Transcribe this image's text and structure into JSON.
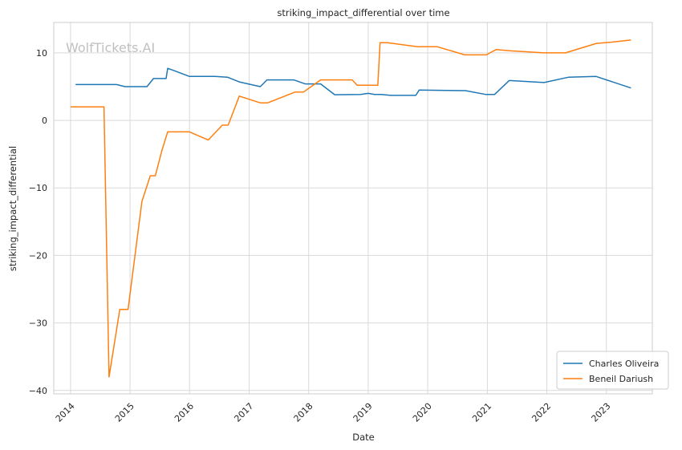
{
  "chart_data": {
    "type": "line",
    "title": "striking_impact_differential over time",
    "xlabel": "Date",
    "ylabel": "striking_impact_differential",
    "watermark": "WolfTickets.AI",
    "xlim": [
      "2013-09-20",
      "2023-10-10"
    ],
    "ylim": [
      -40.5,
      14.5
    ],
    "x_ticks": [
      "2014",
      "2015",
      "2016",
      "2017",
      "2018",
      "2019",
      "2020",
      "2021",
      "2022",
      "2023"
    ],
    "y_ticks": [
      10,
      0,
      -10,
      -20,
      -30,
      -40
    ],
    "y_tick_labels": [
      "10",
      "0",
      "−10",
      "−20",
      "−30",
      "−40"
    ],
    "grid": true,
    "legend_position": "bottom-right",
    "series": [
      {
        "name": "Charles Oliveira",
        "color": "#1f77b4",
        "points": [
          [
            "2014-02-01",
            5.3
          ],
          [
            "2014-05-01",
            5.3
          ],
          [
            "2014-10-10",
            5.3
          ],
          [
            "2014-12-01",
            5.0
          ],
          [
            "2015-01-15",
            5.0
          ],
          [
            "2015-04-15",
            5.0
          ],
          [
            "2015-05-25",
            6.2
          ],
          [
            "2015-08-10",
            6.2
          ],
          [
            "2015-08-20",
            7.7
          ],
          [
            "2015-09-25",
            7.4
          ],
          [
            "2016-01-01",
            6.5
          ],
          [
            "2016-06-05",
            6.5
          ],
          [
            "2016-08-20",
            6.4
          ],
          [
            "2016-11-01",
            5.7
          ],
          [
            "2017-03-10",
            5.0
          ],
          [
            "2017-04-20",
            6.0
          ],
          [
            "2017-10-01",
            6.0
          ],
          [
            "2017-12-10",
            5.4
          ],
          [
            "2018-03-15",
            5.4
          ],
          [
            "2018-06-10",
            3.8
          ],
          [
            "2018-11-15",
            3.85
          ],
          [
            "2019-01-01",
            4.0
          ],
          [
            "2019-02-10",
            3.85
          ],
          [
            "2019-03-20",
            3.85
          ],
          [
            "2019-05-20",
            3.7
          ],
          [
            "2019-10-20",
            3.7
          ],
          [
            "2019-11-10",
            4.5
          ],
          [
            "2020-03-15",
            4.45
          ],
          [
            "2020-08-20",
            4.4
          ],
          [
            "2020-12-20",
            3.85
          ],
          [
            "2021-02-15",
            3.85
          ],
          [
            "2021-05-15",
            5.9
          ],
          [
            "2021-12-15",
            5.6
          ],
          [
            "2022-05-15",
            6.4
          ],
          [
            "2022-10-30",
            6.5
          ],
          [
            "2023-06-01",
            4.8
          ]
        ]
      },
      {
        "name": "Beneil Dariush",
        "color": "#ff7f0e",
        "points": [
          [
            "2014-01-01",
            2.0
          ],
          [
            "2014-05-20",
            2.0
          ],
          [
            "2014-07-25",
            2.0
          ],
          [
            "2014-08-25",
            -38.0
          ],
          [
            "2014-10-30",
            -28.0
          ],
          [
            "2014-12-20",
            -28.0
          ],
          [
            "2015-03-15",
            -12.0
          ],
          [
            "2015-05-05",
            -8.2
          ],
          [
            "2015-06-05",
            -8.2
          ],
          [
            "2015-07-15",
            -4.5
          ],
          [
            "2015-08-20",
            -1.7
          ],
          [
            "2015-10-01",
            -1.7
          ],
          [
            "2016-01-01",
            -1.7
          ],
          [
            "2016-04-25",
            -2.9
          ],
          [
            "2016-07-20",
            -0.7
          ],
          [
            "2016-08-25",
            -0.7
          ],
          [
            "2016-11-01",
            3.6
          ],
          [
            "2017-03-10",
            2.6
          ],
          [
            "2017-04-25",
            2.6
          ],
          [
            "2017-10-10",
            4.2
          ],
          [
            "2017-12-01",
            4.2
          ],
          [
            "2018-03-15",
            6.0
          ],
          [
            "2018-09-25",
            6.0
          ],
          [
            "2018-10-25",
            5.2
          ],
          [
            "2019-01-15",
            5.2
          ],
          [
            "2019-03-01",
            5.2
          ],
          [
            "2019-03-15",
            11.5
          ],
          [
            "2019-05-01",
            11.5
          ],
          [
            "2019-11-01",
            10.9
          ],
          [
            "2020-03-01",
            10.9
          ],
          [
            "2020-08-15",
            9.7
          ],
          [
            "2020-10-10",
            9.7
          ],
          [
            "2020-12-25",
            9.7
          ],
          [
            "2021-02-25",
            10.5
          ],
          [
            "2021-05-25",
            10.3
          ],
          [
            "2021-12-15",
            10.0
          ],
          [
            "2022-02-15",
            10.0
          ],
          [
            "2022-04-25",
            10.0
          ],
          [
            "2022-11-01",
            11.4
          ],
          [
            "2023-02-10",
            11.6
          ],
          [
            "2023-06-01",
            11.9
          ]
        ]
      }
    ]
  }
}
